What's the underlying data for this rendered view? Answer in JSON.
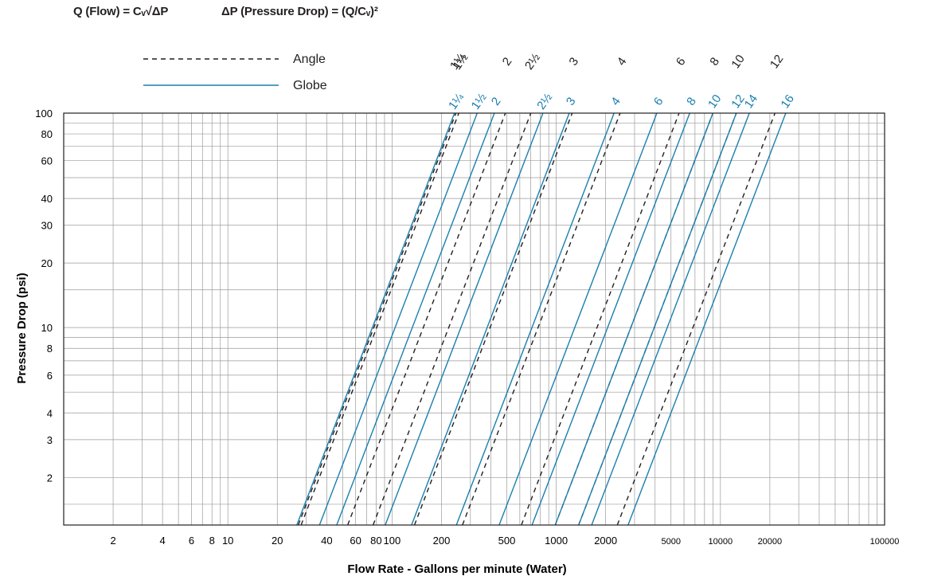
{
  "formulas": {
    "flow": "Q (Flow) = Cᵥ√ΔP",
    "pressure_drop": "ΔP (Pressure Drop) = (Q/Cᵥ)²"
  },
  "chart_data": {
    "type": "line",
    "xlabel": "Flow Rate - Gallons per minute (Water)",
    "ylabel": "Pressure Drop (psi)",
    "xscale": "log",
    "yscale": "log",
    "xlim": [
      1,
      100000
    ],
    "ylim": [
      1.2,
      100
    ],
    "grid": true,
    "legend_position": "top-left",
    "x_ticks": [
      {
        "value": 2,
        "label": "2"
      },
      {
        "value": 4,
        "label": "4"
      },
      {
        "value": 6,
        "label": "6"
      },
      {
        "value": 8,
        "label": "8"
      },
      {
        "value": 10,
        "label": "10"
      },
      {
        "value": 20,
        "label": "20"
      },
      {
        "value": 40,
        "label": "40"
      },
      {
        "value": 60,
        "label": "60"
      },
      {
        "value": 80,
        "label": "80"
      },
      {
        "value": 100,
        "label": "100"
      },
      {
        "value": 200,
        "label": "200"
      },
      {
        "value": 500,
        "label": "500"
      },
      {
        "value": 1000,
        "label": "1000"
      },
      {
        "value": 2000,
        "label": "2000"
      },
      {
        "value": 5000,
        "label": "5000"
      },
      {
        "value": 10000,
        "label": "10000"
      },
      {
        "value": 20000,
        "label": "20000"
      },
      {
        "value": 100000,
        "label": "100000"
      }
    ],
    "y_ticks": [
      {
        "value": 2,
        "label": "2"
      },
      {
        "value": 3,
        "label": "3"
      },
      {
        "value": 4,
        "label": "4"
      },
      {
        "value": 6,
        "label": "6"
      },
      {
        "value": 8,
        "label": "8"
      },
      {
        "value": 10,
        "label": "10"
      },
      {
        "value": 20,
        "label": "20"
      },
      {
        "value": 30,
        "label": "30"
      },
      {
        "value": 40,
        "label": "40"
      },
      {
        "value": 60,
        "label": "60"
      },
      {
        "value": 80,
        "label": "80"
      },
      {
        "value": 100,
        "label": "100"
      }
    ],
    "series_styles": {
      "Angle": {
        "color": "#231f20",
        "dash": "6,5"
      },
      "Globe": {
        "color": "#1b7fae",
        "dash": ""
      }
    },
    "legend": [
      {
        "name": "Angle",
        "style": "dashed",
        "color": "#231f20"
      },
      {
        "name": "Globe",
        "style": "solid",
        "color": "#1b7fae"
      }
    ],
    "series": [
      {
        "group": "Angle",
        "size": "1¼",
        "cv": 24.5
      },
      {
        "group": "Angle",
        "size": "1½",
        "cv": 25.5
      },
      {
        "group": "Angle",
        "size": "2",
        "cv": 49
      },
      {
        "group": "Angle",
        "size": "2½",
        "cv": 70
      },
      {
        "group": "Angle",
        "size": "3",
        "cv": 125
      },
      {
        "group": "Angle",
        "size": "4",
        "cv": 245
      },
      {
        "group": "Angle",
        "size": "6",
        "cv": 560
      },
      {
        "group": "Angle",
        "size": "8",
        "cv": 900
      },
      {
        "group": "Angle",
        "size": "10",
        "cv": 1250
      },
      {
        "group": "Angle",
        "size": "12",
        "cv": 2150
      },
      {
        "group": "Globe",
        "size": "1¼",
        "cv": 24
      },
      {
        "group": "Globe",
        "size": "1½",
        "cv": 33
      },
      {
        "group": "Globe",
        "size": "2",
        "cv": 42
      },
      {
        "group": "Globe",
        "size": "2½",
        "cv": 83
      },
      {
        "group": "Globe",
        "size": "3",
        "cv": 120
      },
      {
        "group": "Globe",
        "size": "4",
        "cv": 225
      },
      {
        "group": "Globe",
        "size": "6",
        "cv": 410
      },
      {
        "group": "Globe",
        "size": "8",
        "cv": 650
      },
      {
        "group": "Globe",
        "size": "10",
        "cv": 900
      },
      {
        "group": "Globe",
        "size": "12",
        "cv": 1250
      },
      {
        "group": "Globe",
        "size": "14",
        "cv": 1500
      },
      {
        "group": "Globe",
        "size": "16",
        "cv": 2500
      }
    ]
  }
}
